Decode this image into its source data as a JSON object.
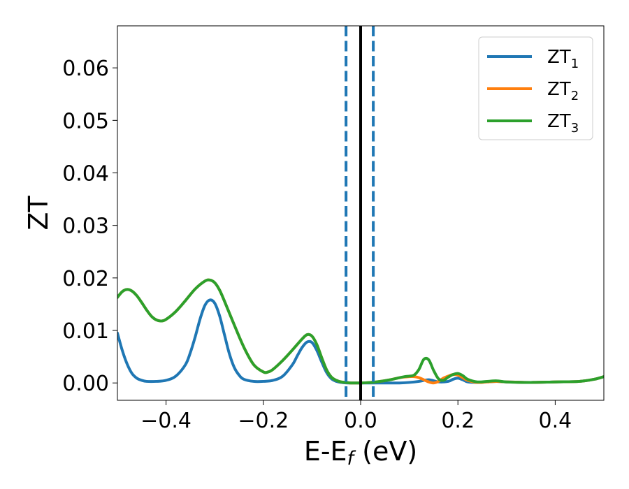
{
  "chart_data": {
    "type": "line",
    "xlabel_base": "E-E",
    "xlabel_sub": "f",
    "xlabel_unit": " (eV)",
    "ylabel": "ZT",
    "xlim": [
      -0.5,
      0.5
    ],
    "ylim": [
      -0.0033,
      0.068
    ],
    "x_ticks": [
      -0.4,
      -0.2,
      0.0,
      0.2,
      0.4
    ],
    "x_tick_labels": [
      "−0.4",
      "−0.2",
      "0.0",
      "0.2",
      "0.4"
    ],
    "y_ticks": [
      0.0,
      0.01,
      0.02,
      0.03,
      0.04,
      0.05,
      0.06
    ],
    "y_tick_labels": [
      "0.00",
      "0.01",
      "0.02",
      "0.03",
      "0.04",
      "0.05",
      "0.06"
    ],
    "grid": false,
    "legend_placement": "top-right",
    "vlines": [
      {
        "x": -0.03,
        "color": "#1f77b4",
        "style": "dashed"
      },
      {
        "x": 0.0,
        "color": "#000000",
        "style": "solid"
      },
      {
        "x": 0.026,
        "color": "#1f77b4",
        "style": "dashed"
      }
    ],
    "series": [
      {
        "name": "ZT",
        "sub": "1",
        "color": "#1f77b4",
        "x": [
          -0.5,
          -0.49,
          -0.48,
          -0.47,
          -0.46,
          -0.45,
          -0.44,
          -0.42,
          -0.4,
          -0.38,
          -0.36,
          -0.35,
          -0.34,
          -0.33,
          -0.32,
          -0.31,
          -0.3,
          -0.29,
          -0.28,
          -0.27,
          -0.26,
          -0.25,
          -0.24,
          -0.22,
          -0.2,
          -0.18,
          -0.16,
          -0.14,
          -0.13,
          -0.12,
          -0.11,
          -0.1,
          -0.09,
          -0.08,
          -0.07,
          -0.06,
          -0.05,
          -0.04,
          -0.03,
          -0.02,
          0.0,
          0.02,
          0.04,
          0.06,
          0.08,
          0.1,
          0.12,
          0.14,
          0.16,
          0.18,
          0.19,
          0.2,
          0.21,
          0.22,
          0.24,
          0.26,
          0.28,
          0.3,
          0.35,
          0.4,
          0.45,
          0.48,
          0.5
        ],
        "y": [
          0.0095,
          0.0062,
          0.0036,
          0.0018,
          0.0009,
          0.0005,
          0.0003,
          0.0003,
          0.0005,
          0.0013,
          0.0035,
          0.0058,
          0.0088,
          0.0122,
          0.0148,
          0.0158,
          0.0152,
          0.0128,
          0.0092,
          0.0056,
          0.003,
          0.0015,
          0.0007,
          0.0003,
          0.0003,
          0.0005,
          0.0013,
          0.0035,
          0.0052,
          0.0068,
          0.0078,
          0.0077,
          0.0062,
          0.004,
          0.002,
          0.0008,
          0.0003,
          0.0001,
          0.0,
          0.0,
          0.0,
          0.0,
          0.0,
          0.0,
          0.0,
          0.0001,
          0.0003,
          0.0006,
          0.0002,
          0.0003,
          0.0007,
          0.0009,
          0.0006,
          0.0002,
          0.0001,
          0.0002,
          0.0003,
          0.0002,
          0.0001,
          0.0002,
          0.0003,
          0.0007,
          0.0012
        ]
      },
      {
        "name": "ZT",
        "sub": "2",
        "color": "#ff7f0e",
        "x": [
          -0.5,
          -0.49,
          -0.48,
          -0.47,
          -0.46,
          -0.45,
          -0.44,
          -0.43,
          -0.42,
          -0.41,
          -0.4,
          -0.38,
          -0.36,
          -0.34,
          -0.32,
          -0.31,
          -0.3,
          -0.29,
          -0.28,
          -0.26,
          -0.24,
          -0.22,
          -0.2,
          -0.19,
          -0.18,
          -0.16,
          -0.14,
          -0.12,
          -0.11,
          -0.1,
          -0.09,
          -0.08,
          -0.07,
          -0.06,
          -0.05,
          -0.04,
          -0.03,
          -0.02,
          0.0,
          0.02,
          0.04,
          0.06,
          0.08,
          0.1,
          0.11,
          0.12,
          0.13,
          0.14,
          0.15,
          0.16,
          0.17,
          0.18,
          0.19,
          0.2,
          0.21,
          0.22,
          0.24,
          0.26,
          0.28,
          0.3,
          0.35,
          0.4,
          0.45,
          0.48,
          0.5
        ],
        "y": [
          0.0163,
          0.0174,
          0.0178,
          0.0175,
          0.0166,
          0.0153,
          0.0139,
          0.0127,
          0.012,
          0.0118,
          0.0121,
          0.0136,
          0.0157,
          0.0179,
          0.0194,
          0.0196,
          0.0191,
          0.0177,
          0.0156,
          0.0111,
          0.0068,
          0.0035,
          0.0021,
          0.0021,
          0.0026,
          0.0043,
          0.0063,
          0.0084,
          0.0092,
          0.0089,
          0.0073,
          0.0048,
          0.0025,
          0.0011,
          0.0005,
          0.0002,
          0.0001,
          0.0,
          0.0,
          0.0001,
          0.0003,
          0.0006,
          0.001,
          0.0012,
          0.0012,
          0.001,
          0.0006,
          0.0002,
          0.0,
          0.0003,
          0.0009,
          0.0013,
          0.0016,
          0.0015,
          0.001,
          0.0005,
          0.0001,
          0.0002,
          0.0003,
          0.0002,
          0.0001,
          0.0002,
          0.0003,
          0.0007,
          0.0012
        ]
      },
      {
        "name": "ZT",
        "sub": "3",
        "color": "#2ca02c",
        "x": [
          -0.5,
          -0.49,
          -0.48,
          -0.47,
          -0.46,
          -0.45,
          -0.44,
          -0.43,
          -0.42,
          -0.41,
          -0.4,
          -0.38,
          -0.36,
          -0.34,
          -0.32,
          -0.31,
          -0.3,
          -0.29,
          -0.28,
          -0.26,
          -0.24,
          -0.22,
          -0.2,
          -0.19,
          -0.18,
          -0.16,
          -0.14,
          -0.12,
          -0.11,
          -0.1,
          -0.09,
          -0.08,
          -0.07,
          -0.06,
          -0.05,
          -0.04,
          -0.03,
          -0.02,
          0.0,
          0.02,
          0.04,
          0.06,
          0.08,
          0.09,
          0.1,
          0.11,
          0.12,
          0.13,
          0.14,
          0.15,
          0.16,
          0.17,
          0.18,
          0.19,
          0.2,
          0.21,
          0.22,
          0.24,
          0.26,
          0.28,
          0.3,
          0.35,
          0.4,
          0.45,
          0.48,
          0.5
        ],
        "y": [
          0.0163,
          0.0174,
          0.0178,
          0.0175,
          0.0166,
          0.0153,
          0.0139,
          0.0127,
          0.012,
          0.0118,
          0.0121,
          0.0136,
          0.0157,
          0.0179,
          0.0194,
          0.0196,
          0.0191,
          0.0177,
          0.0156,
          0.0111,
          0.0068,
          0.0035,
          0.0021,
          0.0021,
          0.0026,
          0.0043,
          0.0063,
          0.0084,
          0.0092,
          0.0089,
          0.0073,
          0.0048,
          0.0025,
          0.0011,
          0.0005,
          0.0002,
          0.0001,
          0.0,
          0.0,
          0.0001,
          0.0003,
          0.0006,
          0.001,
          0.0012,
          0.0013,
          0.0015,
          0.0026,
          0.0045,
          0.0044,
          0.0024,
          0.0008,
          0.0005,
          0.0011,
          0.0016,
          0.0018,
          0.0014,
          0.0007,
          0.0002,
          0.0003,
          0.0004,
          0.0002,
          0.0001,
          0.0002,
          0.0003,
          0.0007,
          0.0012
        ]
      }
    ]
  }
}
